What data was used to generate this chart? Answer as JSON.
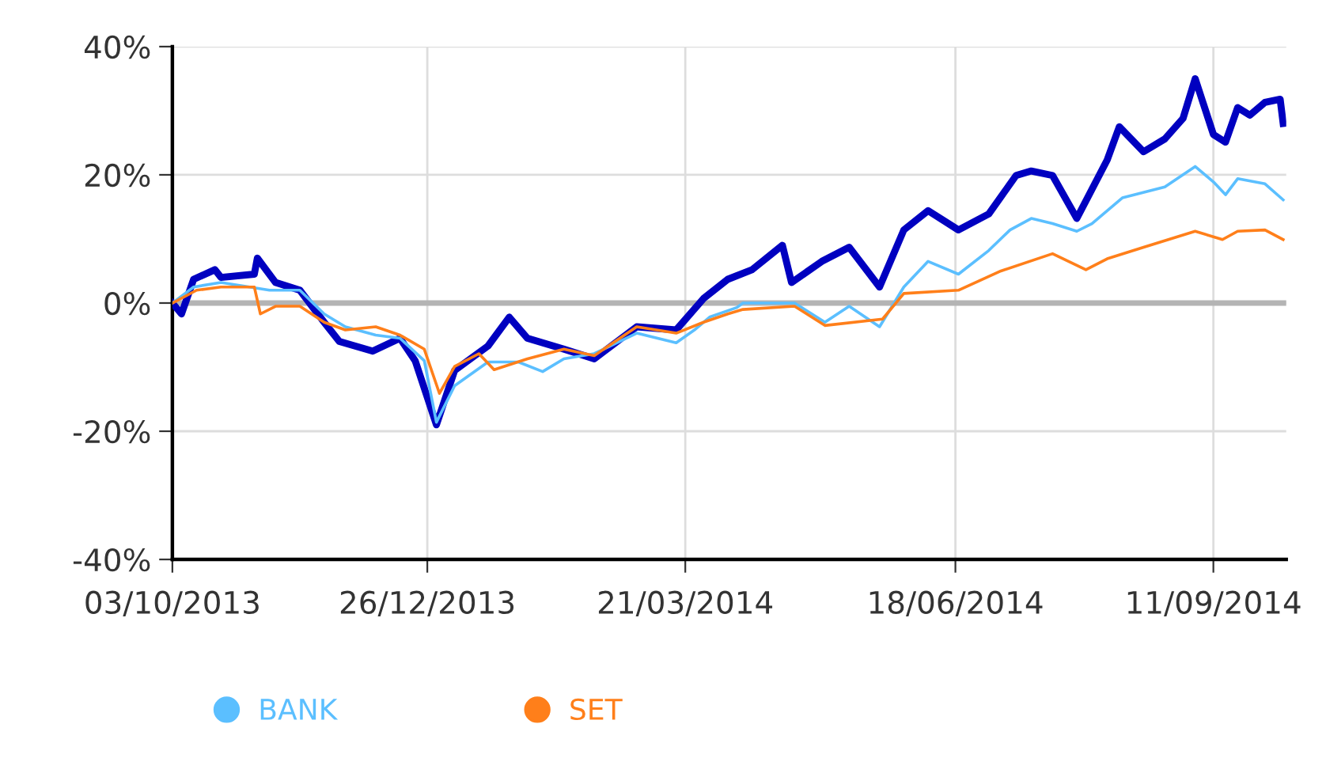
{
  "chart_data": {
    "type": "line",
    "xlim": [
      "2013-10-03",
      "2014-10-05"
    ],
    "xticks": [
      {
        "value": "2013-10-03",
        "label": "03/10/2013"
      },
      {
        "value": "2013-12-26",
        "label": "26/12/2013"
      },
      {
        "value": "2014-03-21",
        "label": "21/03/2014"
      },
      {
        "value": "2014-06-18",
        "label": "18/06/2014"
      },
      {
        "value": "2014-09-11",
        "label": "11/09/2014"
      }
    ],
    "ylim": [
      -40,
      40
    ],
    "yticks": [
      {
        "value": -40,
        "label": "-40%"
      },
      {
        "value": -20,
        "label": "-20%"
      },
      {
        "value": 0,
        "label": "0%"
      },
      {
        "value": 20,
        "label": "20%"
      },
      {
        "value": 40,
        "label": "40%"
      }
    ],
    "grid": true,
    "legend": "bottom",
    "ref_lines": [
      {
        "axis": "y",
        "value": 0,
        "label": null,
        "color": "#b4b4b4"
      }
    ],
    "series": [
      {
        "color": "#0000c0",
        "x": [
          "2013-10-03",
          "2013-10-06",
          "2013-10-10",
          "2013-10-17",
          "2013-10-19",
          "2013-10-30",
          "2013-10-31",
          "2013-11-06",
          "2013-11-14",
          "2013-11-22",
          "2013-11-27",
          "2013-12-08",
          "2013-12-17",
          "2013-12-22",
          "2013-12-29",
          "2014-01-04",
          "2014-01-15",
          "2014-01-22",
          "2014-01-28",
          "2014-02-09",
          "2014-02-19",
          "2014-03-05",
          "2014-03-18",
          "2014-03-27",
          "2014-04-04",
          "2014-04-12",
          "2014-04-22",
          "2014-04-25",
          "2014-05-05",
          "2014-05-14",
          "2014-05-24",
          "2014-06-01",
          "2014-06-09",
          "2014-06-19",
          "2014-06-29",
          "2014-07-08",
          "2014-07-13",
          "2014-07-20",
          "2014-07-28",
          "2014-08-07",
          "2014-08-11",
          "2014-08-19",
          "2014-08-26",
          "2014-09-01",
          "2014-09-05",
          "2014-09-11",
          "2014-09-15",
          "2014-09-19",
          "2014-09-23",
          "2014-09-28",
          "2014-10-03",
          "2014-10-04"
        ],
        "values": [
          0,
          -1.7,
          3.7,
          5.2,
          4,
          4.5,
          7,
          3.2,
          2,
          -3,
          -6,
          -7.5,
          -5.5,
          -9,
          -19,
          -10.5,
          -6.7,
          -2.2,
          -5.5,
          -7.2,
          -8.7,
          -3.7,
          -4.2,
          0.7,
          3.7,
          5.2,
          9,
          3.2,
          6.5,
          8.7,
          2.5,
          11.4,
          14.4,
          11.4,
          13.9,
          19.9,
          20.6,
          19.9,
          13.2,
          22.3,
          27.5,
          23.6,
          25.6,
          28.8,
          35,
          26.3,
          25.1,
          30.5,
          29.3,
          31.3,
          31.8,
          28
        ]
      },
      {
        "name": "BANK",
        "color": "#5bbfff",
        "x": [
          "2013-10-03",
          "2013-10-10",
          "2013-10-19",
          "2013-11-04",
          "2013-11-14",
          "2013-11-22",
          "2013-11-29",
          "2013-12-09",
          "2013-12-17",
          "2013-12-25",
          "2013-12-29",
          "2014-01-04",
          "2014-01-15",
          "2014-01-25",
          "2014-02-02",
          "2014-02-09",
          "2014-02-19",
          "2014-03-05",
          "2014-03-18",
          "2014-03-24",
          "2014-03-29",
          "2014-04-07",
          "2014-04-09",
          "2014-04-26",
          "2014-05-06",
          "2014-05-14",
          "2014-05-24",
          "2014-06-01",
          "2014-06-09",
          "2014-06-19",
          "2014-06-29",
          "2014-07-06",
          "2014-07-13",
          "2014-07-20",
          "2014-07-28",
          "2014-08-02",
          "2014-08-12",
          "2014-08-26",
          "2014-09-05",
          "2014-09-11",
          "2014-09-15",
          "2014-09-19",
          "2014-09-28",
          "2014-10-04"
        ],
        "values": [
          0,
          2.5,
          3.2,
          2,
          2,
          -1.7,
          -3.7,
          -5,
          -5.5,
          -9,
          -18.6,
          -12.9,
          -9.2,
          -9.2,
          -10.7,
          -8.7,
          -7.9,
          -4.7,
          -6.2,
          -4.2,
          -2.2,
          -0.7,
          0,
          0,
          -3,
          -0.5,
          -3.7,
          2.5,
          6.5,
          4.5,
          8.2,
          11.4,
          13.2,
          12.4,
          11.2,
          12.4,
          16.4,
          18.1,
          21.3,
          18.9,
          16.9,
          19.4,
          18.6,
          16.1
        ]
      },
      {
        "name": "SET",
        "color": "#ff7f1a",
        "x": [
          "2013-10-03",
          "2013-10-11",
          "2013-10-19",
          "2013-10-30",
          "2013-11-01",
          "2013-11-06",
          "2013-11-14",
          "2013-11-22",
          "2013-11-29",
          "2013-12-09",
          "2013-12-17",
          "2013-12-25",
          "2013-12-30",
          "2014-01-04",
          "2014-01-12",
          "2014-01-17",
          "2014-01-28",
          "2014-02-09",
          "2014-02-19",
          "2014-03-05",
          "2014-03-18",
          "2014-03-27",
          "2014-04-04",
          "2014-04-09",
          "2014-04-26",
          "2014-05-06",
          "2014-05-25",
          "2014-06-01",
          "2014-06-19",
          "2014-07-03",
          "2014-07-20",
          "2014-07-31",
          "2014-08-07",
          "2014-08-19",
          "2014-09-05",
          "2014-09-14",
          "2014-09-19",
          "2014-09-28",
          "2014-10-04"
        ],
        "values": [
          0,
          2,
          2.5,
          2.5,
          -1.7,
          -0.5,
          -0.5,
          -3,
          -4.2,
          -3.7,
          -5,
          -7.2,
          -14.1,
          -9.9,
          -7.9,
          -10.4,
          -8.7,
          -7.2,
          -8.2,
          -3.7,
          -4.7,
          -3,
          -1.7,
          -1,
          -0.5,
          -3.5,
          -2.5,
          1.5,
          2,
          5,
          7.7,
          5.2,
          6.9,
          8.7,
          11.2,
          9.9,
          11.2,
          11.4,
          9.9
        ]
      }
    ]
  }
}
